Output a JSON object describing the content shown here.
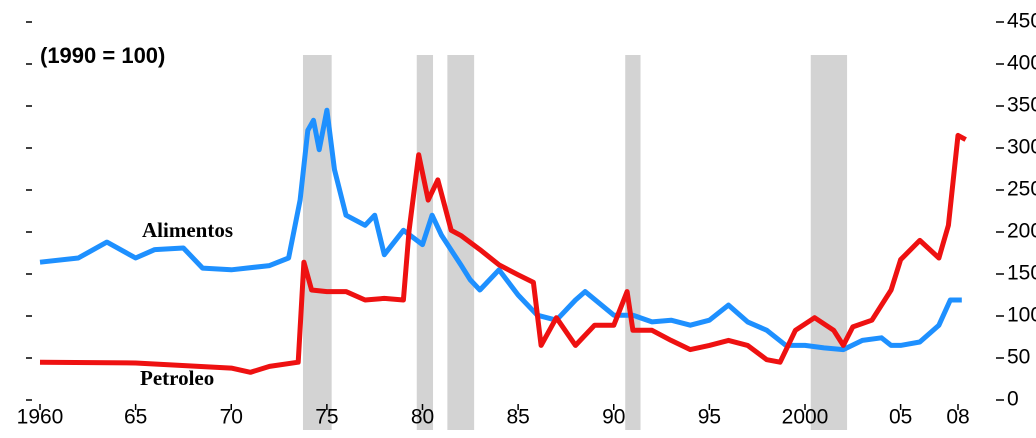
{
  "chart_data": {
    "type": "line",
    "annotations": [
      "(1990 = 100)"
    ],
    "xlim": [
      1958,
      2010
    ],
    "xticks": [
      {
        "value": 1960,
        "label": "1960"
      },
      {
        "value": 1965,
        "label": "65"
      },
      {
        "value": 1970,
        "label": "70"
      },
      {
        "value": 1975,
        "label": "75"
      },
      {
        "value": 1980,
        "label": "80"
      },
      {
        "value": 1985,
        "label": "85"
      },
      {
        "value": 1990,
        "label": "90"
      },
      {
        "value": 1995,
        "label": "95"
      },
      {
        "value": 2000,
        "label": "2000"
      },
      {
        "value": 2005,
        "label": "05"
      },
      {
        "value": 2008,
        "label": "08"
      }
    ],
    "ylim": [
      0,
      450
    ],
    "yticks": [
      0,
      50,
      100,
      150,
      200,
      250,
      300,
      350,
      400,
      450
    ],
    "recessions": [
      [
        1973.75,
        1975.25
      ],
      [
        1979.7,
        1980.55
      ],
      [
        1981.3,
        1982.7
      ],
      [
        1990.6,
        1991.4
      ],
      [
        2000.3,
        2002.2
      ]
    ],
    "recession_color": "#d3d3d3",
    "series": [
      {
        "name": "Alimentos",
        "color": "#1e90ff",
        "x": [
          1960,
          1962,
          1963.5,
          1965,
          1966,
          1967.5,
          1968.5,
          1970,
          1972,
          1973,
          1973.6,
          1974,
          1974.3,
          1974.6,
          1975,
          1975.4,
          1976,
          1977,
          1977.5,
          1978,
          1979,
          1980,
          1980.5,
          1981,
          1982,
          1982.5,
          1983,
          1984,
          1985,
          1986,
          1987,
          1988,
          1988.5,
          1990,
          1991,
          1992,
          1993,
          1994,
          1995,
          1996,
          1997,
          1998,
          1999,
          2000,
          2001,
          2002,
          2003,
          2004,
          2004.5,
          2005,
          2006,
          2007,
          2007.6,
          2008.2
        ],
        "values": [
          164,
          169,
          188,
          169,
          179,
          181,
          157,
          155,
          160,
          169,
          238,
          321,
          333,
          298,
          345,
          274,
          220,
          208,
          220,
          173,
          202,
          185,
          220,
          196,
          161,
          143,
          131,
          155,
          125,
          101,
          95,
          119,
          129,
          101,
          101,
          93,
          95,
          89,
          95,
          113,
          93,
          83,
          65,
          65,
          62,
          60,
          71,
          74,
          65,
          65,
          69,
          89,
          119,
          119
        ]
      },
      {
        "name": "Petroleo",
        "color": "#ee1111",
        "x": [
          1960,
          1965,
          1970,
          1971,
          1972,
          1973.5,
          1973.8,
          1974.2,
          1975,
          1976,
          1977,
          1978,
          1979,
          1979.3,
          1979.8,
          1980.3,
          1980.8,
          1981.5,
          1982,
          1983,
          1984,
          1985,
          1985.8,
          1986.2,
          1987,
          1988,
          1989,
          1990,
          1990.7,
          1991,
          1992,
          1993,
          1994,
          1995,
          1996,
          1997,
          1998,
          1998.7,
          1999.5,
          2000.5,
          2001.5,
          2002,
          2002.5,
          2003.5,
          2004.5,
          2005,
          2006,
          2007,
          2007.5,
          2008,
          2008.4
        ],
        "values": [
          45,
          44,
          38,
          33,
          40,
          45,
          164,
          131,
          129,
          129,
          119,
          121,
          119,
          202,
          292,
          238,
          262,
          202,
          196,
          179,
          161,
          149,
          140,
          65,
          98,
          65,
          89,
          89,
          129,
          83,
          83,
          71,
          60,
          65,
          71,
          65,
          48,
          45,
          83,
          98,
          83,
          65,
          87,
          95,
          131,
          167,
          190,
          169,
          208,
          315,
          310
        ]
      }
    ]
  }
}
